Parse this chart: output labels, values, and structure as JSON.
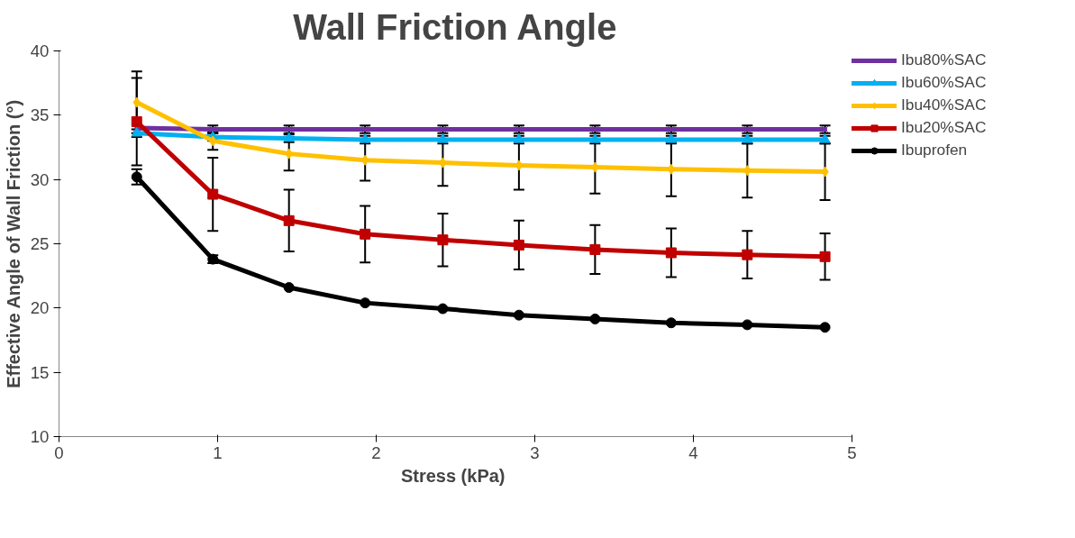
{
  "chart_data": {
    "type": "line",
    "title": "Wall Friction Angle",
    "xlabel": "Stress  (kPa)",
    "ylabel": "Effective Angle of Wall Friction (°)",
    "x": [
      0.49,
      0.97,
      1.45,
      1.93,
      2.42,
      2.9,
      3.38,
      3.86,
      4.34,
      4.83
    ],
    "xlim": [
      0,
      5
    ],
    "xticks": [
      0,
      1,
      2,
      3,
      4,
      5
    ],
    "ylim": [
      10,
      40
    ],
    "yticks": [
      10,
      15,
      20,
      25,
      30,
      35,
      40
    ],
    "grid": false,
    "legend": "top right",
    "line_style": "solid",
    "series": [
      {
        "name": "Ibu80%SAC",
        "color": "#7030a0",
        "marker": "cross",
        "values": [
          34.0,
          33.9,
          33.9,
          33.9,
          33.9,
          33.9,
          33.9,
          33.9,
          33.9,
          33.9
        ],
        "errors": [
          null,
          0.3,
          0.3,
          0.3,
          0.3,
          0.3,
          0.3,
          0.3,
          0.3,
          0.3
        ]
      },
      {
        "name": "Ibu60%SAC",
        "color": "#00b0f0",
        "marker": "triangle",
        "values": [
          33.6,
          33.3,
          33.2,
          33.1,
          33.1,
          33.1,
          33.1,
          33.1,
          33.1,
          33.1
        ],
        "errors": [
          0.3,
          0.3,
          0.3,
          0.3,
          0.3,
          0.3,
          0.3,
          0.3,
          0.3,
          0.3
        ]
      },
      {
        "name": "Ibu40%SAC",
        "color": "#ffc000",
        "marker": "diamond",
        "values": [
          36.0,
          33.0,
          32.0,
          31.5,
          31.3,
          31.1,
          30.95,
          30.8,
          30.7,
          30.6
        ],
        "errors": [
          2.4,
          0.7,
          1.3,
          1.6,
          1.8,
          1.9,
          2.05,
          2.1,
          2.1,
          2.2
        ]
      },
      {
        "name": "Ibu20%SAC",
        "color": "#c00000",
        "marker": "square",
        "values": [
          34.5,
          28.85,
          26.8,
          25.75,
          25.3,
          24.9,
          24.55,
          24.3,
          24.15,
          24.0
        ],
        "errors": [
          3.4,
          2.85,
          2.4,
          2.2,
          2.05,
          1.9,
          1.9,
          1.9,
          1.85,
          1.8
        ]
      },
      {
        "name": "Ibuprofen",
        "color": "#000000",
        "marker": "circle",
        "values": [
          30.2,
          23.8,
          21.6,
          20.4,
          19.95,
          19.45,
          19.15,
          18.85,
          18.7,
          18.5
        ],
        "errors": [
          0.6,
          0.3,
          null,
          null,
          null,
          null,
          null,
          null,
          null,
          null
        ]
      }
    ]
  }
}
